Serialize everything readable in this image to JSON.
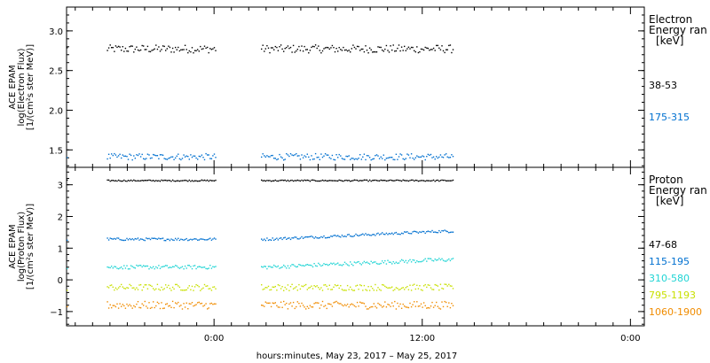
{
  "colors": {
    "black": "#000000",
    "blue": "#0070d0",
    "cyan": "#20d4d4",
    "yellow": "#c8e000",
    "orange": "#f08c00"
  },
  "chart_data": [
    {
      "type": "scatter",
      "panel": "electron",
      "ylabel": [
        "ACE EPAM",
        "log(Electron Flux)",
        "[1/(cm²s ster MeV)]"
      ],
      "ylim": [
        1.28,
        3.3
      ],
      "yticks": [
        1.5,
        2.0,
        2.5,
        3.0
      ],
      "ytick_labels": [
        "1.5",
        "2.0",
        "2.5",
        "3.0"
      ],
      "legend_title": [
        "Electron",
        "Energy ran",
        "[keV]"
      ],
      "gaps_hours": [
        [
          -8.5,
          -6.2
        ],
        [
          0.1,
          2.7
        ],
        [
          13.8,
          36
        ]
      ],
      "series": [
        {
          "name": "38-53",
          "label": "38-53",
          "color_key": "black",
          "mean": 2.78,
          "noise": 0.05
        },
        {
          "name": "175-315",
          "label": "175-315",
          "color_key": "blue",
          "mean": 1.42,
          "noise": 0.04
        }
      ]
    },
    {
      "type": "scatter",
      "panel": "proton",
      "ylabel": [
        "ACE EPAM",
        "log(Proton Flux)",
        "[1/(cm²s ster MeV)]"
      ],
      "ylim": [
        -1.45,
        3.55
      ],
      "yticks": [
        -1,
        0,
        1,
        2,
        3
      ],
      "ytick_labels": [
        "−1",
        "0",
        "1",
        "2",
        "3"
      ],
      "legend_title": [
        "Proton",
        "Energy ran",
        "[keV]"
      ],
      "gaps_hours": [
        [
          -8.5,
          -6.2
        ],
        [
          0.1,
          2.7
        ],
        [
          13.8,
          36
        ]
      ],
      "series": [
        {
          "name": "47-68",
          "label": "47-68",
          "color_key": "black",
          "mean": 3.15,
          "noise": 0.02
        },
        {
          "name": "115-195",
          "label": "115-195",
          "color_key": "blue",
          "mean": 1.3,
          "noise": 0.04,
          "rise_to": 1.55
        },
        {
          "name": "310-580",
          "label": "310-580",
          "color_key": "cyan",
          "mean": 0.42,
          "noise": 0.06,
          "rise_to": 0.65
        },
        {
          "name": "795-1193",
          "label": "795-1193",
          "color_key": "yellow",
          "mean": -0.22,
          "noise": 0.1
        },
        {
          "name": "1060-1900",
          "label": "1060-1900",
          "color_key": "orange",
          "mean": -0.78,
          "noise": 0.12
        }
      ]
    }
  ],
  "x_axis": {
    "label": "hours:minutes, May 23, 2017 – May 25, 2017",
    "range_hours": [
      -8.5,
      24.8
    ],
    "ticks_hours": [
      0,
      12,
      24
    ],
    "tick_labels": [
      "0:00",
      "12:00",
      "0:00"
    ],
    "minor_step_hours": 1
  }
}
